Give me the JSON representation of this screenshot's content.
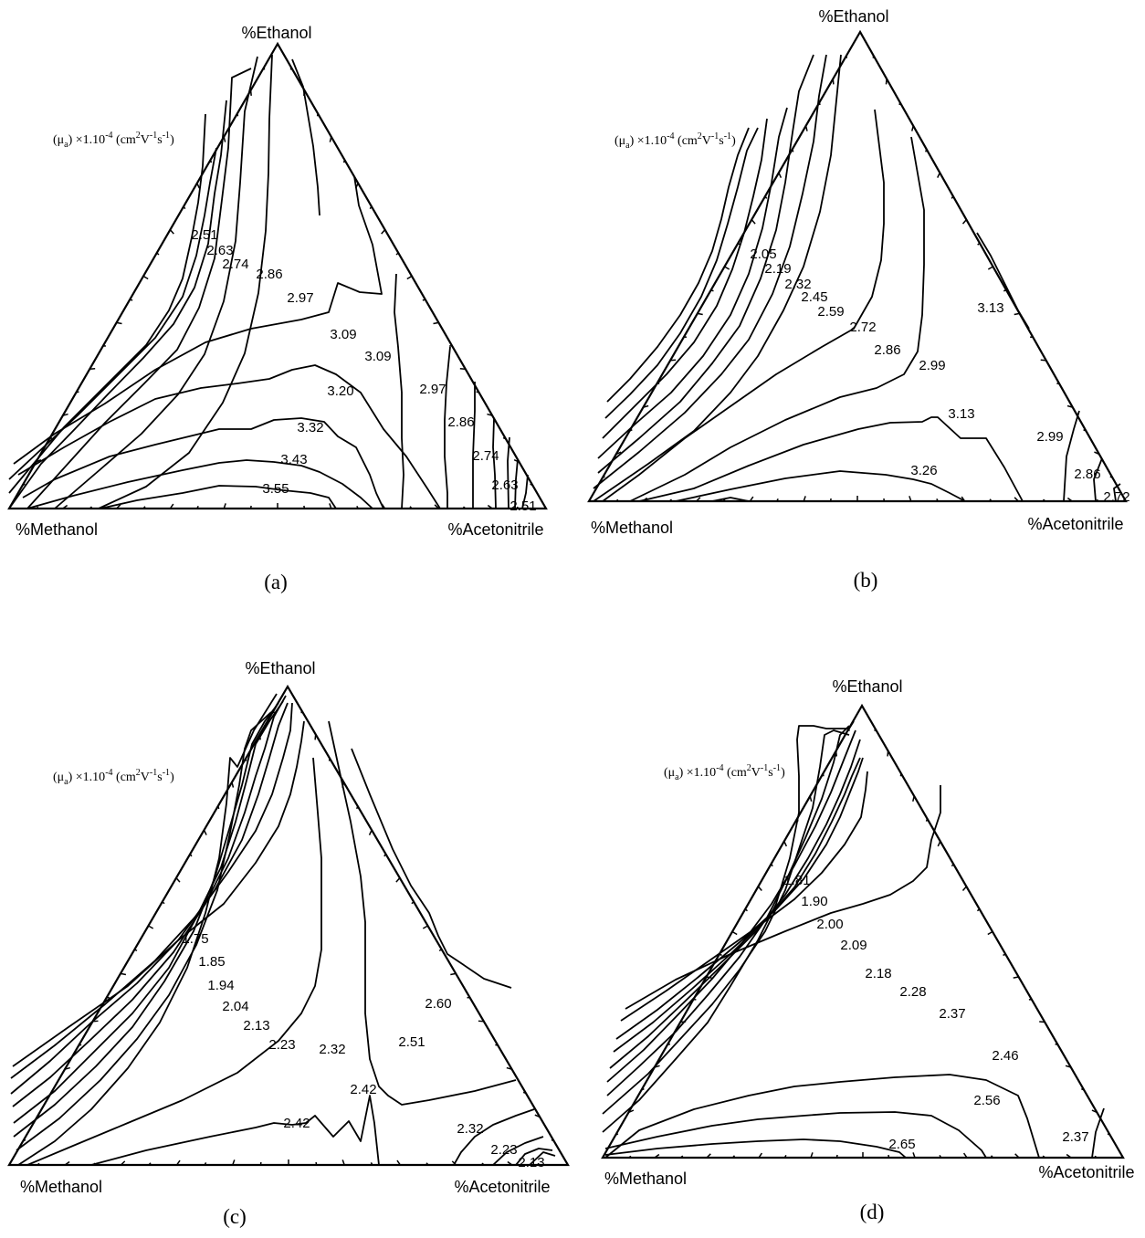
{
  "chart_data": [
    {
      "type": "ternary-contour",
      "panel": "(a)",
      "top_vertex": "%Ethanol",
      "left_vertex": "%Methanol",
      "right_vertex": "%Acetonitrile",
      "quantity_prefix": "(μ",
      "quantity_subscript": "a",
      "quantity_middle": ") ×1.10",
      "exponent": "-4",
      "unit_base": " (cm",
      "unit_exp1": "2",
      "unit_v": "V",
      "unit_exp2": "-1",
      "unit_s": "s",
      "unit_exp3": "-1",
      "unit_close": ")",
      "contour_labels": [
        "2.51",
        "2.63",
        "2.74",
        "2.86",
        "2.97",
        "3.09",
        "3.09",
        "3.20",
        "3.32",
        "3.43",
        "3.55",
        "2.97",
        "2.86",
        "2.74",
        "2.63",
        "2.51"
      ]
    },
    {
      "type": "ternary-contour",
      "panel": "(b)",
      "top_vertex": "%Ethanol",
      "left_vertex": "%Methanol",
      "right_vertex": "%Acetonitrile",
      "quantity_prefix": "(μ",
      "quantity_subscript": "a",
      "quantity_middle": ") ×1.10",
      "exponent": "-4",
      "unit_base": " (cm",
      "unit_exp1": "2",
      "unit_v": "V",
      "unit_exp2": "-1",
      "unit_s": "s",
      "unit_exp3": "-1",
      "unit_close": ")",
      "contour_labels": [
        "2.05",
        "2.19",
        "2.32",
        "2.45",
        "2.59",
        "2.72",
        "2.86",
        "2.99",
        "3.13",
        "3.13",
        "3.26",
        "2.99",
        "2.86",
        "2.72"
      ]
    },
    {
      "type": "ternary-contour",
      "panel": "(c)",
      "top_vertex": "%Ethanol",
      "left_vertex": "%Methanol",
      "right_vertex": "%Acetonitrile",
      "quantity_prefix": "(μ",
      "quantity_subscript": "a",
      "quantity_middle": ") ×1.10",
      "exponent": "-4",
      "unit_base": " (cm",
      "unit_exp1": "2",
      "unit_v": "V",
      "unit_exp2": "-1",
      "unit_s": "s",
      "unit_exp3": "-1",
      "unit_close": ")",
      "contour_labels": [
        "1.75",
        "1.85",
        "1.94",
        "2.04",
        "2.13",
        "2.23",
        "2.32",
        "2.60",
        "2.51",
        "2.42",
        "2.42",
        "2.32",
        "2.23",
        "2.13"
      ]
    },
    {
      "type": "ternary-contour",
      "panel": "(d)",
      "top_vertex": "%Ethanol",
      "left_vertex": "%Methanol",
      "right_vertex": "%Acetonitrile",
      "quantity_prefix": "(μ",
      "quantity_subscript": "a",
      "quantity_middle": ") ×1.10",
      "exponent": "-4",
      "unit_base": " (cm",
      "unit_exp1": "2",
      "unit_v": "V",
      "unit_exp2": "-1",
      "unit_s": "s",
      "unit_exp3": "-1",
      "unit_close": ")",
      "contour_labels": [
        "1.81",
        "1.90",
        "2.00",
        "2.09",
        "2.18",
        "2.28",
        "2.37",
        "2.46",
        "2.56",
        "2.65",
        "2.37"
      ]
    }
  ]
}
